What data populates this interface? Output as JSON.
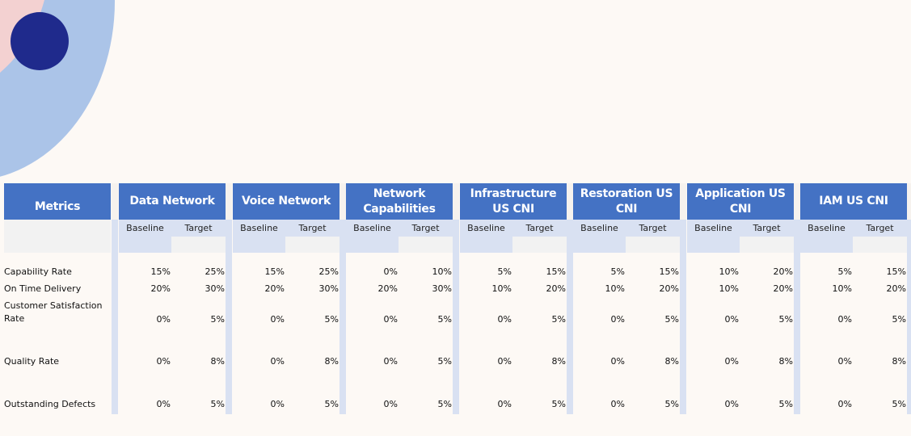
{
  "table": {
    "metrics_header": "Metrics",
    "subheaders": {
      "baseline": "Baseline",
      "target": "Target"
    },
    "groups": [
      {
        "name": "Data Network"
      },
      {
        "name": "Voice Network"
      },
      {
        "name": "Network Capabilities"
      },
      {
        "name": "Infrastructure US CNI"
      },
      {
        "name": "Restoration US CNI"
      },
      {
        "name": "Application US CNI"
      },
      {
        "name": "IAM US CNI"
      }
    ],
    "rows": [
      {
        "metric": "Capability Rate",
        "values": [
          [
            "15%",
            "25%"
          ],
          [
            "15%",
            "25%"
          ],
          [
            "0%",
            "10%"
          ],
          [
            "5%",
            "15%"
          ],
          [
            "5%",
            "15%"
          ],
          [
            "10%",
            "20%"
          ],
          [
            "5%",
            "15%"
          ]
        ]
      },
      {
        "metric": "On Time Delivery",
        "values": [
          [
            "20%",
            "30%"
          ],
          [
            "20%",
            "30%"
          ],
          [
            "20%",
            "30%"
          ],
          [
            "10%",
            "20%"
          ],
          [
            "10%",
            "20%"
          ],
          [
            "10%",
            "20%"
          ],
          [
            "10%",
            "20%"
          ]
        ]
      },
      {
        "metric": "Customer Satisfaction Rate",
        "values": [
          [
            "0%",
            "5%"
          ],
          [
            "0%",
            "5%"
          ],
          [
            "0%",
            "5%"
          ],
          [
            "0%",
            "5%"
          ],
          [
            "0%",
            "5%"
          ],
          [
            "0%",
            "5%"
          ],
          [
            "0%",
            "5%"
          ]
        ]
      },
      {
        "metric": "Quality Rate",
        "values": [
          [
            "0%",
            "8%"
          ],
          [
            "0%",
            "8%"
          ],
          [
            "0%",
            "5%"
          ],
          [
            "0%",
            "8%"
          ],
          [
            "0%",
            "8%"
          ],
          [
            "0%",
            "8%"
          ],
          [
            "0%",
            "8%"
          ]
        ]
      },
      {
        "metric": "Outstanding Defects",
        "values": [
          [
            "0%",
            "5%"
          ],
          [
            "0%",
            "5%"
          ],
          [
            "0%",
            "5%"
          ],
          [
            "0%",
            "5%"
          ],
          [
            "0%",
            "5%"
          ],
          [
            "0%",
            "5%"
          ],
          [
            "0%",
            "5%"
          ]
        ]
      }
    ]
  },
  "colors": {
    "header_blue": "#4472c4",
    "stripe_blue": "#d9e1f2",
    "subheader_gray": "#f2f2f2",
    "background": "#fdf9f5",
    "ring_blue": "#abc4e8",
    "ring_pink": "#f3d1d1",
    "dot_navy": "#1f2a8c"
  }
}
